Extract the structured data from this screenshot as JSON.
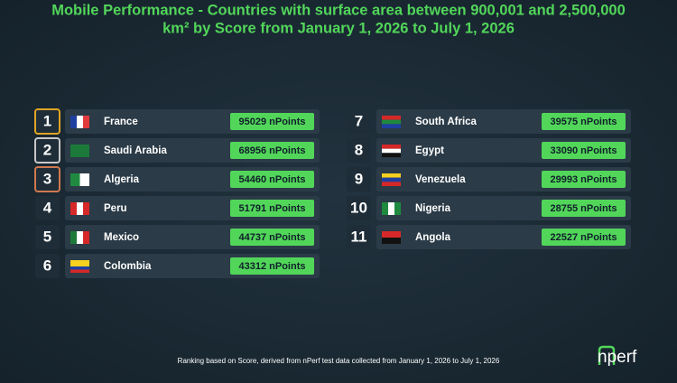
{
  "header": {
    "title_line1": "Mobile Performance - Countries with surface area between 900,001 and 2,500,000",
    "title_line2": "km² by Score from January 1, 2026 to July 1, 2026"
  },
  "ranking": [
    {
      "rank": 1,
      "country": "France",
      "score": "95029 nPoints"
    },
    {
      "rank": 2,
      "country": "Saudi Arabia",
      "score": "68956 nPoints"
    },
    {
      "rank": 3,
      "country": "Algeria",
      "score": "54460 nPoints"
    },
    {
      "rank": 4,
      "country": "Peru",
      "score": "51791 nPoints"
    },
    {
      "rank": 5,
      "country": "Mexico",
      "score": "44737 nPoints"
    },
    {
      "rank": 6,
      "country": "Colombia",
      "score": "43312 nPoints"
    },
    {
      "rank": 7,
      "country": "South Africa",
      "score": "39575 nPoints"
    },
    {
      "rank": 8,
      "country": "Egypt",
      "score": "33090 nPoints"
    },
    {
      "rank": 9,
      "country": "Venezuela",
      "score": "29993 nPoints"
    },
    {
      "rank": 10,
      "country": "Nigeria",
      "score": "28755 nPoints"
    },
    {
      "rank": 11,
      "country": "Angola",
      "score": "22527 nPoints"
    }
  ],
  "footer": {
    "note": "Ranking based on Score, derived from nPerf test data collected from January 1, 2026 to July 1, 2026",
    "logo": "nperf"
  }
}
